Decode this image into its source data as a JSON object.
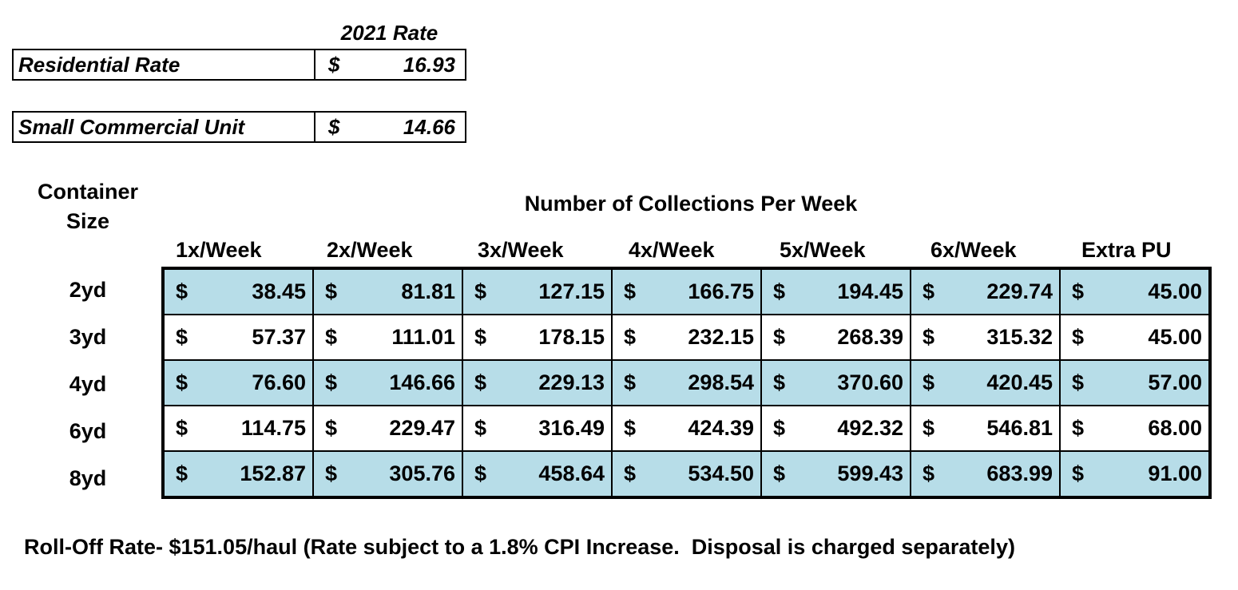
{
  "rates": {
    "header": "2021 Rate",
    "currency": "$",
    "rows": [
      [
        "Residential Rate",
        "16.93"
      ],
      [
        "Small Commercial Unit",
        "14.66"
      ]
    ]
  },
  "table": {
    "row_header": "Container Size",
    "title": "Number of Collections Per Week",
    "currency": "$",
    "columns": [
      "1x/Week",
      "2x/Week",
      "3x/Week",
      "4x/Week",
      "5x/Week",
      "6x/Week",
      "Extra PU"
    ],
    "rows": [
      {
        "label": "2yd",
        "values": [
          "38.45",
          "81.81",
          "127.15",
          "166.75",
          "194.45",
          "229.74",
          "45.00"
        ]
      },
      {
        "label": "3yd",
        "values": [
          "57.37",
          "111.01",
          "178.15",
          "232.15",
          "268.39",
          "315.32",
          "45.00"
        ]
      },
      {
        "label": "4yd",
        "values": [
          "76.60",
          "146.66",
          "229.13",
          "298.54",
          "370.60",
          "420.45",
          "57.00"
        ]
      },
      {
        "label": "6yd",
        "values": [
          "114.75",
          "229.47",
          "316.49",
          "424.39",
          "492.32",
          "546.81",
          "68.00"
        ]
      },
      {
        "label": "8yd",
        "values": [
          "152.87",
          "305.76",
          "458.64",
          "534.50",
          "599.43",
          "683.99",
          "91.00"
        ]
      }
    ]
  },
  "footnote": "Roll-Off Rate- $151.05/haul (Rate subject to a 1.8% CPI Increase.  Disposal is charged separately)"
}
